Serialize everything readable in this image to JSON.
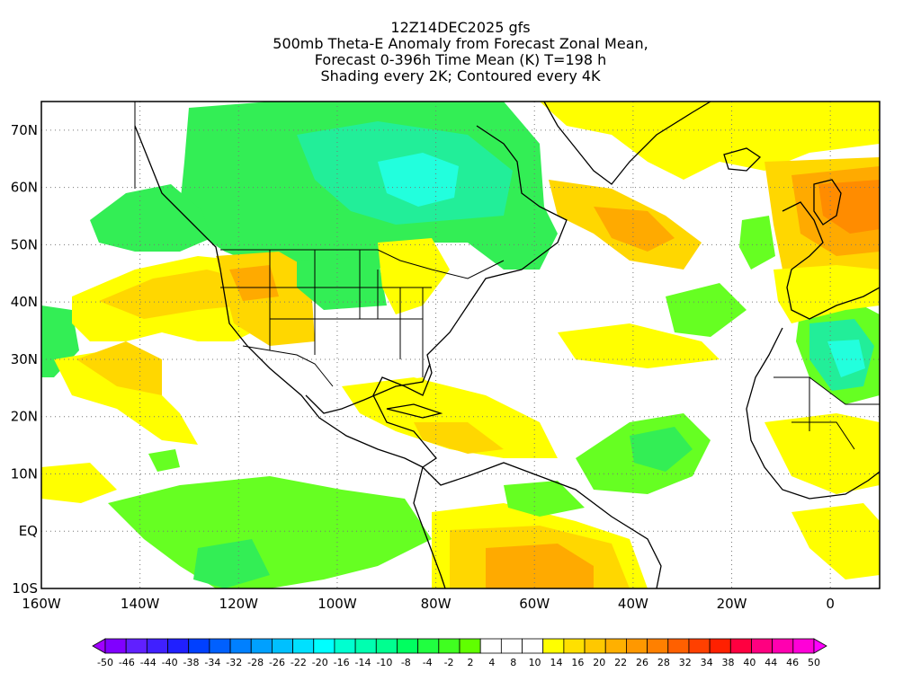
{
  "title": {
    "line1": "12Z14DEC2025 gfs",
    "line2": "500mb Theta-E Anomaly from Forecast Zonal Mean,",
    "line3": "Forecast 0-396h Time Mean (K) T=198 h",
    "line4": "Shading every 2K; Contoured every 4K"
  },
  "map": {
    "lon_range": [
      -160,
      10
    ],
    "lat_range": [
      -10,
      75
    ],
    "lon_ticks": [
      "160W",
      "140W",
      "120W",
      "100W",
      "80W",
      "60W",
      "40W",
      "20W",
      "0"
    ],
    "lat_ticks": [
      "70N",
      "60N",
      "50N",
      "40N",
      "30N",
      "20N",
      "10N",
      "EQ",
      "10S"
    ],
    "gridlines": "dotted"
  },
  "colorbar": {
    "labels": [
      "-50",
      "-46",
      "-44",
      "-40",
      "-38",
      "-34",
      "-32",
      "-28",
      "-26",
      "-22",
      "-20",
      "-16",
      "-14",
      "-10",
      "-8",
      "-4",
      "-2",
      "2",
      "4",
      "8",
      "10",
      "14",
      "16",
      "20",
      "22",
      "26",
      "28",
      "32",
      "34",
      "38",
      "40",
      "44",
      "46",
      "50"
    ],
    "colors": [
      "#a000ff",
      "#8000ff",
      "#6020ff",
      "#4020ff",
      "#2020ff",
      "#0040ff",
      "#0060ff",
      "#0080ff",
      "#00a0ff",
      "#00c0ff",
      "#00e0ff",
      "#00ffff",
      "#00ffd0",
      "#00ffb0",
      "#00ff90",
      "#00ff60",
      "#20ff40",
      "#40ff20",
      "#60ff00",
      "#ffffff",
      "#ffffff",
      "#ffffff",
      "#ffff00",
      "#ffe000",
      "#ffc800",
      "#ffb000",
      "#ff9800",
      "#ff8000",
      "#ff6000",
      "#ff4000",
      "#ff2000",
      "#ff0040",
      "#ff0080",
      "#ff00b0",
      "#ff00d8",
      "#ff00ff"
    ]
  },
  "anomaly_colors": {
    "green_light": "#66ff22",
    "green": "#33ee55",
    "teal": "#22ee99",
    "cyan": "#22ffdd",
    "yellow": "#ffff00",
    "yellow_orange": "#ffd700",
    "orange": "#ffaa00",
    "dark_orange": "#ff8c00"
  }
}
